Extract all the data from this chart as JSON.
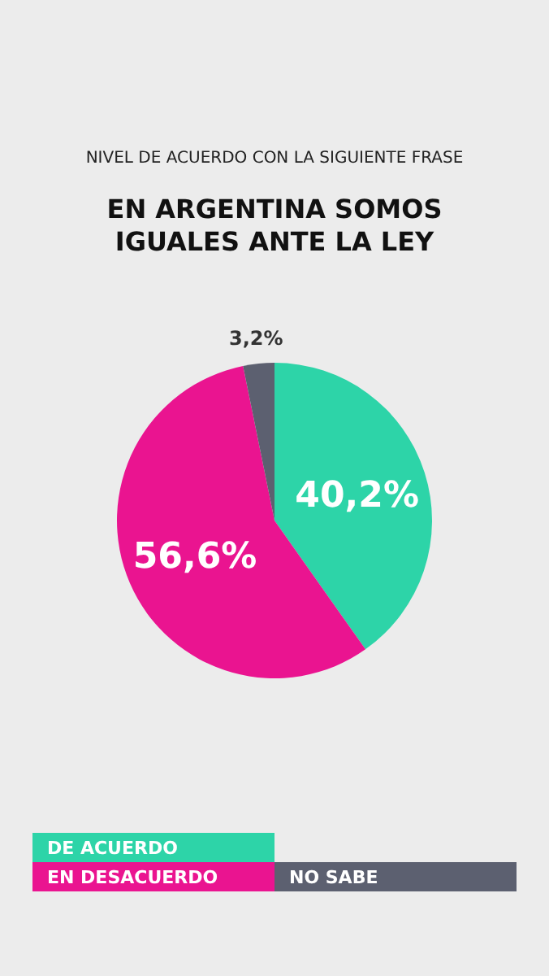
{
  "chart_data": {
    "type": "pie",
    "subtitle": "NIVEL DE ACUERDO CON LA SIGUIENTE FRASE",
    "title": "EN ARGENTINA SOMOS IGUALES ANTE LA LEY",
    "categories": [
      "DE ACUERDO",
      "EN DESACUERDO",
      "NO SABE"
    ],
    "values": [
      40.2,
      56.6,
      3.2
    ],
    "colors": [
      "#2dd4a8",
      "#ea1490",
      "#5c6070"
    ],
    "value_labels": [
      "40,2%",
      "56,6%",
      "3,2%"
    ],
    "legend": "bottom"
  }
}
